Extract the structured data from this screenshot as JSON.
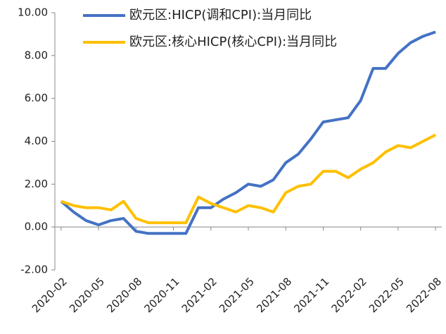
{
  "chart_data": {
    "type": "line",
    "categories": [
      "2020-02",
      null,
      null,
      "2020-05",
      null,
      null,
      "2020-08",
      null,
      null,
      "2020-11",
      null,
      null,
      "2021-02",
      null,
      null,
      "2021-05",
      null,
      null,
      "2021-08",
      null,
      null,
      "2021-11",
      null,
      null,
      "2022-02",
      null,
      null,
      "2022-05",
      null,
      null,
      "2022-08"
    ],
    "series": [
      {
        "name": "欧元区:HICP(调和CPI):当月同比",
        "color": "#4472c4",
        "values": [
          1.2,
          0.7,
          0.3,
          0.1,
          0.3,
          0.4,
          -0.2,
          -0.3,
          -0.3,
          -0.3,
          -0.3,
          0.9,
          0.9,
          1.3,
          1.6,
          2.0,
          1.9,
          2.2,
          3.0,
          3.4,
          4.1,
          4.9,
          5.0,
          5.1,
          5.9,
          7.4,
          7.4,
          8.1,
          8.6,
          8.9,
          9.1
        ]
      },
      {
        "name": "欧元区:核心HICP(核心CPI):当月同比",
        "color": "#ffc000",
        "values": [
          1.2,
          1.0,
          0.9,
          0.9,
          0.8,
          1.2,
          0.4,
          0.2,
          0.2,
          0.2,
          0.2,
          1.4,
          1.1,
          0.9,
          0.7,
          1.0,
          0.9,
          0.7,
          1.6,
          1.9,
          2.0,
          2.6,
          2.6,
          2.3,
          2.7,
          3.0,
          3.5,
          3.8,
          3.7,
          4.0,
          4.3
        ]
      }
    ],
    "ylim": [
      -2,
      10
    ],
    "yticks": [
      {
        "value": -2,
        "label": "-2.00"
      },
      {
        "value": 0,
        "label": "0.00"
      },
      {
        "value": 2,
        "label": "2.00"
      },
      {
        "value": 4,
        "label": "4.00"
      },
      {
        "value": 6,
        "label": "6.00"
      },
      {
        "value": 8,
        "label": "8.00"
      },
      {
        "value": 10,
        "label": "10.00"
      }
    ],
    "legend": "upper left"
  }
}
